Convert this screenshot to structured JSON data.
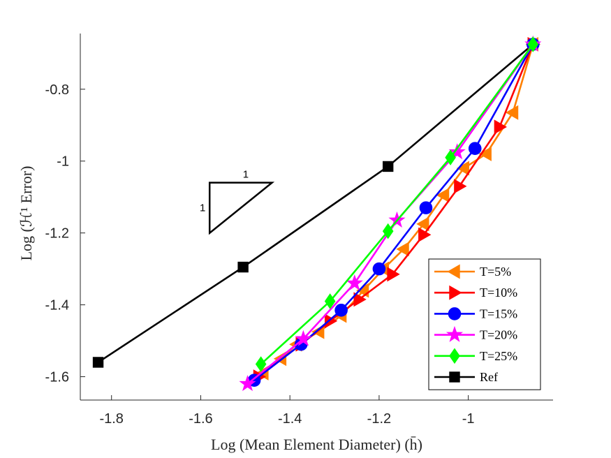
{
  "chart_data": {
    "type": "line",
    "xlabel": "Log (Mean Element Diameter)  (h̄)",
    "ylabel": "Log (ℋ¹ Error)",
    "xlim": [
      -1.87,
      -0.81
    ],
    "ylim": [
      -1.665,
      -0.645
    ],
    "xticks": [
      -1.8,
      -1.6,
      -1.4,
      -1.2,
      -1.0
    ],
    "xtick_labels": [
      "-1.8",
      "-1.6",
      "-1.4",
      "-1.2",
      "-1"
    ],
    "yticks": [
      -1.6,
      -1.4,
      -1.2,
      -1.0,
      -0.8
    ],
    "ytick_labels": [
      "-1.6",
      "-1.4",
      "-1.2",
      "-1",
      "-0.8"
    ],
    "grid": false,
    "legend_position": "bottom-right",
    "slope_triangle": {
      "label_run": "1",
      "label_rise": "1",
      "vertices": [
        [
          -1.58,
          -1.06
        ],
        [
          -1.44,
          -1.06
        ],
        [
          -1.58,
          -1.2
        ]
      ]
    },
    "series": [
      {
        "name": "T=5%",
        "color": "#FF8000",
        "marker": "triangle-left",
        "x": [
          -0.855,
          -0.9,
          -0.96,
          -1.01,
          -1.055,
          -1.1,
          -1.145,
          -1.19,
          -1.235,
          -1.285,
          -1.335,
          -1.385,
          -1.42,
          -1.46
        ],
        "y": [
          -0.675,
          -0.865,
          -0.98,
          -1.02,
          -1.095,
          -1.175,
          -1.245,
          -1.3,
          -1.36,
          -1.43,
          -1.475,
          -1.51,
          -1.55,
          -1.59
        ]
      },
      {
        "name": "T=10%",
        "color": "#FF0000",
        "marker": "triangle-right",
        "x": [
          -0.855,
          -0.93,
          -1.02,
          -1.1,
          -1.17,
          -1.245,
          -1.31,
          -1.375,
          -1.47
        ],
        "y": [
          -0.675,
          -0.905,
          -1.07,
          -1.205,
          -1.315,
          -1.385,
          -1.445,
          -1.51,
          -1.6
        ]
      },
      {
        "name": "T=15%",
        "color": "#0000FF",
        "marker": "circle",
        "x": [
          -0.855,
          -0.985,
          -1.095,
          -1.2,
          -1.285,
          -1.375,
          -1.48
        ],
        "y": [
          -0.675,
          -0.965,
          -1.13,
          -1.3,
          -1.415,
          -1.51,
          -1.61
        ]
      },
      {
        "name": "T=20%",
        "color": "#FF00FF",
        "marker": "star",
        "x": [
          -0.855,
          -1.025,
          -1.16,
          -1.255,
          -1.37,
          -1.495
        ],
        "y": [
          -0.675,
          -0.975,
          -1.165,
          -1.34,
          -1.495,
          -1.62
        ]
      },
      {
        "name": "T=25%",
        "color": "#00FF00",
        "marker": "diamond",
        "x": [
          -0.855,
          -1.04,
          -1.18,
          -1.31,
          -1.465
        ],
        "y": [
          -0.675,
          -0.99,
          -1.195,
          -1.39,
          -1.565
        ]
      },
      {
        "name": "Ref",
        "color": "#000000",
        "marker": "square",
        "x": [
          -0.855,
          -1.18,
          -1.505,
          -1.83
        ],
        "y": [
          -0.675,
          -1.015,
          -1.295,
          -1.56
        ]
      }
    ]
  }
}
